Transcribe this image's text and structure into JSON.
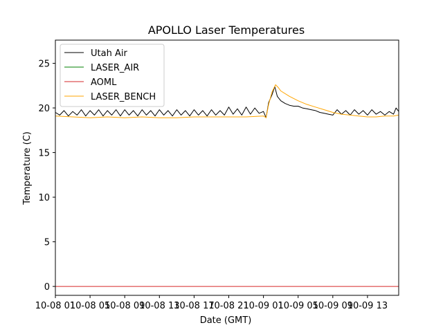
{
  "chart_data": {
    "type": "line",
    "title": "APOLLO Laser Temperatures",
    "xlabel": "Date (GMT)",
    "ylabel": "Temperature (C)",
    "ylim": [
      -1.0,
      27.6
    ],
    "xlim_hours": [
      0,
      39.6
    ],
    "x_origin": "10-08 01",
    "yticks": [
      0,
      5,
      10,
      15,
      20,
      25
    ],
    "ytick_labels": [
      "0",
      "5",
      "10",
      "15",
      "20",
      "25"
    ],
    "xticks_hours": [
      0,
      4,
      8,
      12,
      16,
      20,
      24,
      28,
      32,
      36
    ],
    "xtick_labels": [
      "10-08 01",
      "10-08 05",
      "10-08 09",
      "10-08 13",
      "10-08 17",
      "10-08 21",
      "10-09 01",
      "10-09 05",
      "10-09 09",
      "10-09 13"
    ],
    "legend_position": "top-left",
    "series": [
      {
        "name": "Utah Air",
        "color": "#000000",
        "points": [
          [
            0,
            19.5
          ],
          [
            0.5,
            19.2
          ],
          [
            1.0,
            19.7
          ],
          [
            1.5,
            19.1
          ],
          [
            2.0,
            19.6
          ],
          [
            2.5,
            19.2
          ],
          [
            3.0,
            19.8
          ],
          [
            3.5,
            19.1
          ],
          [
            4.0,
            19.7
          ],
          [
            4.5,
            19.2
          ],
          [
            5.0,
            19.8
          ],
          [
            5.5,
            19.1
          ],
          [
            6.0,
            19.7
          ],
          [
            6.5,
            19.2
          ],
          [
            7.0,
            19.8
          ],
          [
            7.5,
            19.1
          ],
          [
            8.0,
            19.8
          ],
          [
            8.5,
            19.2
          ],
          [
            9.0,
            19.7
          ],
          [
            9.5,
            19.1
          ],
          [
            10.0,
            19.8
          ],
          [
            10.5,
            19.2
          ],
          [
            11.0,
            19.7
          ],
          [
            11.5,
            19.1
          ],
          [
            12.0,
            19.8
          ],
          [
            12.5,
            19.2
          ],
          [
            13.0,
            19.7
          ],
          [
            13.5,
            19.1
          ],
          [
            14.0,
            19.8
          ],
          [
            14.5,
            19.2
          ],
          [
            15.0,
            19.7
          ],
          [
            15.5,
            19.1
          ],
          [
            16.0,
            19.8
          ],
          [
            16.5,
            19.2
          ],
          [
            17.0,
            19.7
          ],
          [
            17.5,
            19.1
          ],
          [
            18.0,
            19.8
          ],
          [
            18.5,
            19.2
          ],
          [
            19.0,
            19.7
          ],
          [
            19.5,
            19.2
          ],
          [
            20.0,
            20.1
          ],
          [
            20.5,
            19.3
          ],
          [
            21.0,
            19.9
          ],
          [
            21.5,
            19.2
          ],
          [
            22.0,
            20.1
          ],
          [
            22.5,
            19.3
          ],
          [
            23.0,
            20.0
          ],
          [
            23.5,
            19.4
          ],
          [
            24.0,
            19.6
          ],
          [
            24.3,
            18.9
          ],
          [
            24.6,
            20.6
          ],
          [
            25.0,
            21.5
          ],
          [
            25.3,
            22.4
          ],
          [
            25.6,
            21.3
          ],
          [
            26.0,
            20.8
          ],
          [
            26.5,
            20.5
          ],
          [
            27.0,
            20.3
          ],
          [
            27.5,
            20.2
          ],
          [
            28.0,
            20.2
          ],
          [
            28.5,
            20.0
          ],
          [
            29.0,
            19.9
          ],
          [
            29.5,
            19.8
          ],
          [
            30.0,
            19.7
          ],
          [
            30.5,
            19.5
          ],
          [
            31.0,
            19.4
          ],
          [
            31.5,
            19.3
          ],
          [
            32.0,
            19.2
          ],
          [
            32.5,
            19.8
          ],
          [
            33.0,
            19.3
          ],
          [
            33.5,
            19.7
          ],
          [
            34.0,
            19.2
          ],
          [
            34.5,
            19.8
          ],
          [
            35.0,
            19.3
          ],
          [
            35.5,
            19.7
          ],
          [
            36.0,
            19.2
          ],
          [
            36.5,
            19.8
          ],
          [
            37.0,
            19.3
          ],
          [
            37.5,
            19.6
          ],
          [
            38.0,
            19.2
          ],
          [
            38.5,
            19.6
          ],
          [
            39.0,
            19.3
          ],
          [
            39.3,
            20.0
          ],
          [
            39.6,
            19.6
          ]
        ]
      },
      {
        "name": "LASER_AIR",
        "color": "#008000",
        "points": []
      },
      {
        "name": "AOML",
        "color": "#d62728",
        "points": [
          [
            0,
            0.0
          ],
          [
            39.6,
            0.0
          ]
        ]
      },
      {
        "name": "LASER_BENCH",
        "color": "#ffa500",
        "points": [
          [
            0,
            19.1
          ],
          [
            2,
            19.0
          ],
          [
            4,
            18.9
          ],
          [
            6,
            19.0
          ],
          [
            8,
            18.9
          ],
          [
            10,
            19.0
          ],
          [
            12,
            18.9
          ],
          [
            14,
            18.9
          ],
          [
            16,
            19.0
          ],
          [
            18,
            19.0
          ],
          [
            20,
            19.0
          ],
          [
            22,
            19.0
          ],
          [
            24,
            19.1
          ],
          [
            24.3,
            18.9
          ],
          [
            24.6,
            20.4
          ],
          [
            25.0,
            21.8
          ],
          [
            25.4,
            22.6
          ],
          [
            25.7,
            22.3
          ],
          [
            26.0,
            21.9
          ],
          [
            27.0,
            21.3
          ],
          [
            28.0,
            20.8
          ],
          [
            29.0,
            20.4
          ],
          [
            30.0,
            20.1
          ],
          [
            31.0,
            19.8
          ],
          [
            32.0,
            19.5
          ],
          [
            33.0,
            19.3
          ],
          [
            34.0,
            19.2
          ],
          [
            35.0,
            19.1
          ],
          [
            36.0,
            19.0
          ],
          [
            37.0,
            19.0
          ],
          [
            38.0,
            19.1
          ],
          [
            39.0,
            19.1
          ],
          [
            39.6,
            19.2
          ]
        ]
      }
    ]
  }
}
